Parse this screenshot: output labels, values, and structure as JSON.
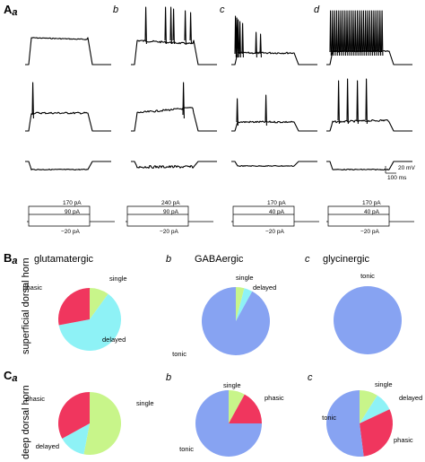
{
  "panel_labels": {
    "A": {
      "main": "A",
      "sub": "a"
    },
    "A_b": "b",
    "A_c": "c",
    "A_d": "d",
    "B": {
      "main": "B",
      "sub": "a"
    },
    "B_b": "b",
    "B_c": "c",
    "C": {
      "main": "C",
      "sub": "a"
    },
    "C_b": "b",
    "C_c": "c"
  },
  "scale_bar": {
    "voltage": "20 mV",
    "time": "100 ms"
  },
  "current_steps": [
    {
      "top": "170 pA",
      "middle": "90 pA",
      "bottom": "−20 pA"
    },
    {
      "top": "240 pA",
      "middle": "90 pA",
      "bottom": "−20 pA"
    },
    {
      "top": "170 pA",
      "middle": "40 pA",
      "bottom": "−20 pA"
    },
    {
      "top": "170 pA",
      "middle": "40 pA",
      "bottom": "−20 pA"
    }
  ],
  "row_labels": {
    "superficial": "superficial dorsal horn",
    "deep": "deep dorsal horn"
  },
  "column_titles": {
    "glut": "glutamatergic",
    "gaba": "GABAergic",
    "gly": "glycinergic"
  },
  "colors": {
    "phasic": "#f0365e",
    "single": "#c8f58a",
    "delayed": "#8ef2f6",
    "tonic": "#87a3f2"
  },
  "chart_data": [
    {
      "type": "pie",
      "region": "superficial dorsal horn",
      "cell_type": "glutamatergic",
      "categories": [
        "single",
        "delayed",
        "phasic"
      ],
      "values": [
        10,
        62,
        28
      ]
    },
    {
      "type": "pie",
      "region": "superficial dorsal horn",
      "cell_type": "GABAergic",
      "categories": [
        "single",
        "delayed",
        "tonic"
      ],
      "values": [
        4,
        4,
        92
      ]
    },
    {
      "type": "pie",
      "region": "superficial dorsal horn",
      "cell_type": "glycinergic",
      "categories": [
        "tonic"
      ],
      "values": [
        100
      ]
    },
    {
      "type": "pie",
      "region": "deep dorsal horn",
      "cell_type": "glutamatergic",
      "categories": [
        "single",
        "delayed",
        "phasic"
      ],
      "values": [
        53,
        14,
        33
      ]
    },
    {
      "type": "pie",
      "region": "deep dorsal horn",
      "cell_type": "GABAergic",
      "categories": [
        "single",
        "phasic",
        "tonic"
      ],
      "values": [
        8,
        17,
        75
      ]
    },
    {
      "type": "pie",
      "region": "deep dorsal horn",
      "cell_type": "glycinergic",
      "categories": [
        "single",
        "delayed",
        "phasic",
        "tonic"
      ],
      "values": [
        9,
        9,
        30,
        52
      ]
    }
  ]
}
